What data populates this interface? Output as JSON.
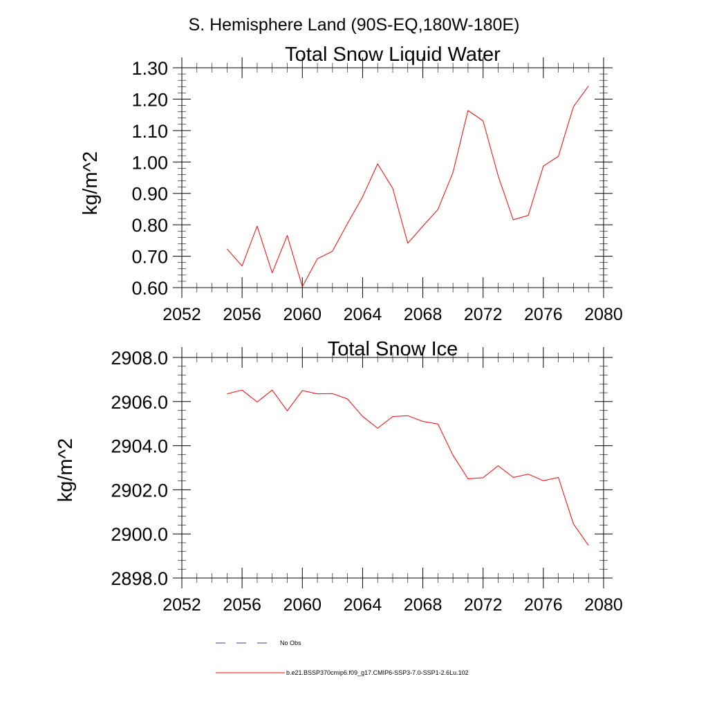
{
  "page": {
    "region_title": "S. Hemisphere Land (90S-EQ,180W-180E)"
  },
  "legend": {
    "items": [
      {
        "label": "No Obs",
        "color": "#3b3b8f",
        "dash": true
      },
      {
        "label": "b.e21.BSSP370cmip6.f09_g17.CMIP6-SSP3-7.0-SSP1-2.6Lu.102",
        "color": "#ff0000",
        "dash": false
      }
    ]
  },
  "chart_data": [
    {
      "type": "line",
      "title": "Total Snow Liquid Water",
      "xlabel": "",
      "ylabel": "kg/m^2",
      "xlim": [
        2052,
        2080
      ],
      "ylim": [
        0.6,
        1.3
      ],
      "xticks": [
        2052,
        2056,
        2060,
        2064,
        2068,
        2072,
        2076,
        2080
      ],
      "xtick_labels": [
        "2052",
        "2056",
        "2060",
        "2064",
        "2068",
        "2072",
        "2076",
        "2080"
      ],
      "yticks": [
        0.6,
        0.7,
        0.8,
        0.9,
        1.0,
        1.1,
        1.2,
        1.3
      ],
      "ytick_labels": [
        "0.60",
        "0.70",
        "0.80",
        "0.90",
        "1.00",
        "1.10",
        "1.20",
        "1.30"
      ],
      "grid": false,
      "series": [
        {
          "color": "#ff0000",
          "x": [
            2055,
            2056,
            2057,
            2058,
            2059,
            2060,
            2061,
            2062,
            2063,
            2064,
            2065,
            2066,
            2067,
            2068,
            2069,
            2070,
            2071,
            2072,
            2073,
            2074,
            2075,
            2076,
            2077,
            2078,
            2079
          ],
          "y": [
            0.723,
            0.669,
            0.796,
            0.647,
            0.766,
            0.603,
            0.692,
            0.716,
            0.804,
            0.889,
            0.994,
            0.916,
            0.741,
            0.796,
            0.849,
            0.966,
            1.164,
            1.131,
            0.956,
            0.816,
            0.83,
            0.987,
            1.018,
            1.176,
            1.242
          ]
        }
      ]
    },
    {
      "type": "line",
      "title": "Total Snow Ice",
      "xlabel": "",
      "ylabel": "kg/m^2",
      "xlim": [
        2052,
        2080
      ],
      "ylim": [
        2898,
        2908
      ],
      "xticks": [
        2052,
        2056,
        2060,
        2064,
        2068,
        2072,
        2076,
        2080
      ],
      "xtick_labels": [
        "2052",
        "2056",
        "2060",
        "2064",
        "2068",
        "2072",
        "2076",
        "2080"
      ],
      "yticks": [
        2898,
        2900,
        2902,
        2904,
        2906,
        2908
      ],
      "ytick_labels": [
        "2898.0",
        "2900.0",
        "2902.0",
        "2904.0",
        "2906.0",
        "2908.0"
      ],
      "grid": false,
      "series": [
        {
          "color": "#ff0000",
          "x": [
            2055,
            2056,
            2057,
            2058,
            2059,
            2060,
            2061,
            2062,
            2063,
            2064,
            2065,
            2066,
            2067,
            2068,
            2069,
            2070,
            2071,
            2072,
            2073,
            2074,
            2075,
            2076,
            2077,
            2078,
            2079
          ],
          "y": [
            2906.35,
            2906.52,
            2905.98,
            2906.52,
            2905.58,
            2906.5,
            2906.35,
            2906.36,
            2906.12,
            2905.33,
            2904.79,
            2905.32,
            2905.36,
            2905.1,
            2904.98,
            2903.57,
            2902.5,
            2902.55,
            2903.09,
            2902.56,
            2902.71,
            2902.41,
            2902.56,
            2900.45,
            2899.48
          ]
        }
      ]
    }
  ]
}
